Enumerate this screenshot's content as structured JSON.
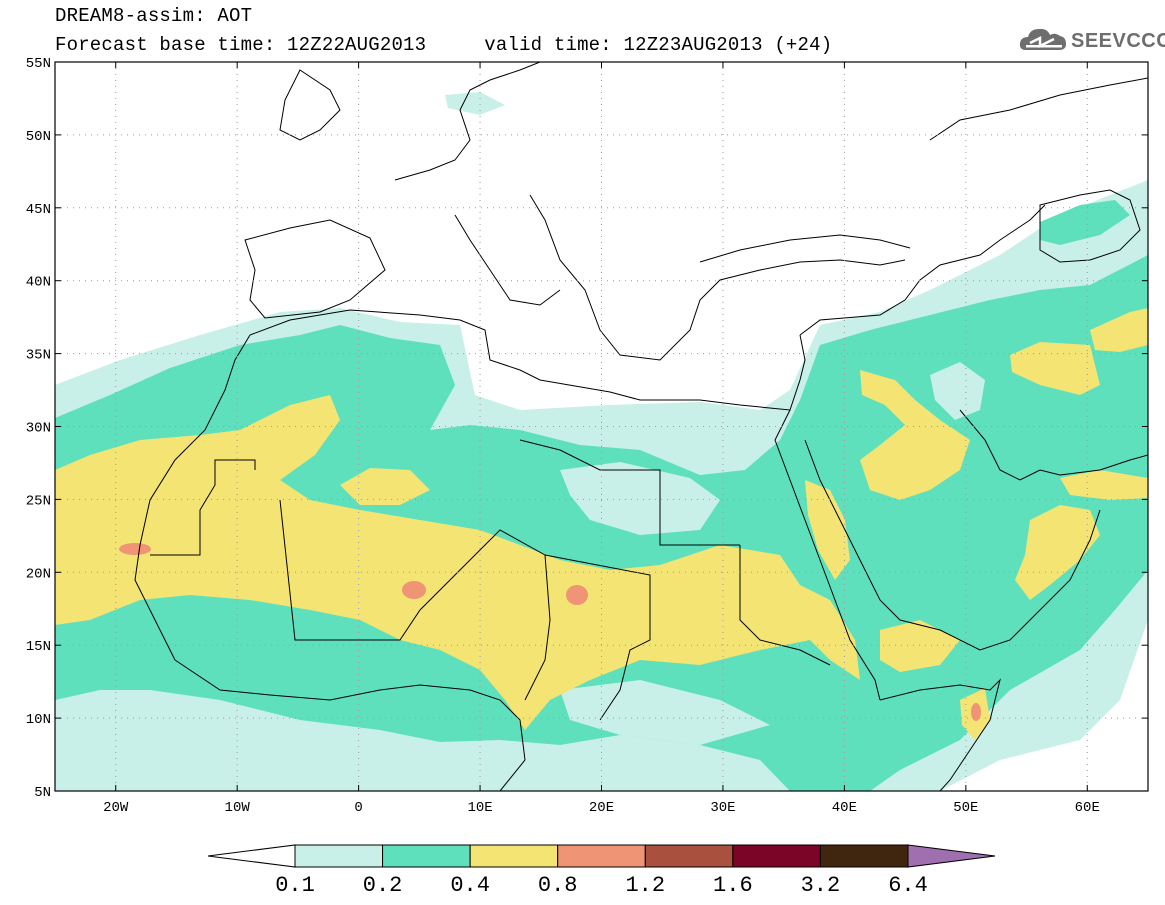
{
  "header": {
    "title_line1": "DREAM8-assim: AOT",
    "title_line2": "Forecast base time: 12Z22AUG2013     valid time: 12Z23AUG2013 (+24)"
  },
  "logo": {
    "text": "SEEVCCC",
    "icon": "cloud-icon",
    "color": "#6e6e6e"
  },
  "map": {
    "lon_range": [
      -25,
      65
    ],
    "lat_range": [
      5,
      55
    ],
    "lat_ticks": [
      {
        "value": 55,
        "label": "55N"
      },
      {
        "value": 50,
        "label": "50N"
      },
      {
        "value": 45,
        "label": "45N"
      },
      {
        "value": 40,
        "label": "40N"
      },
      {
        "value": 35,
        "label": "35N"
      },
      {
        "value": 30,
        "label": "30N"
      },
      {
        "value": 25,
        "label": "25N"
      },
      {
        "value": 20,
        "label": "20N"
      },
      {
        "value": 15,
        "label": "15N"
      },
      {
        "value": 10,
        "label": "10N"
      },
      {
        "value": 5,
        "label": "5N"
      }
    ],
    "lon_ticks": [
      {
        "value": -20,
        "label": "20W"
      },
      {
        "value": -10,
        "label": "10W"
      },
      {
        "value": 0,
        "label": "0"
      },
      {
        "value": 10,
        "label": "10E"
      },
      {
        "value": 20,
        "label": "20E"
      },
      {
        "value": 30,
        "label": "30E"
      },
      {
        "value": 40,
        "label": "40E"
      },
      {
        "value": 50,
        "label": "50E"
      },
      {
        "value": 60,
        "label": "60E"
      }
    ],
    "grid": "dotted"
  },
  "colorbar": {
    "labels": [
      "0.1",
      "0.2",
      "0.4",
      "0.8",
      "1.2",
      "1.6",
      "3.2",
      "6.4"
    ],
    "colors": [
      "#ffffff",
      "#c8f0e8",
      "#5ee0bd",
      "#f3e474",
      "#ef9474",
      "#a9503e",
      "#7a0526",
      "#40260f",
      "#9f6fb0"
    ]
  },
  "levels": {
    "light_cyan": "#c8f0e8",
    "green": "#5ee0bd",
    "yellow": "#f3e474",
    "salmon": "#ef9474"
  }
}
